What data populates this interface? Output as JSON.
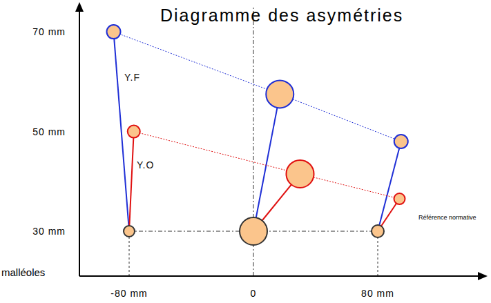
{
  "chart_data": {
    "type": "scatter",
    "title": "Diagramme des asymétries",
    "ylabel": "malléoles",
    "xlim": [
      -112,
      148
    ],
    "xticks": [
      {
        "value": -80,
        "label": "-80 mm"
      },
      0,
      {
        "value": 80,
        "label": "80 mm"
      }
    ],
    "ylim": [
      21,
      75
    ],
    "yticks": [
      {
        "value": 30,
        "label": "30 mm"
      },
      {
        "value": 50,
        "label": "50 mm"
      },
      {
        "value": 70,
        "label": "70 mm"
      }
    ],
    "grid": false,
    "series": [
      {
        "name": "Référence normative",
        "color": "#333333",
        "x": [
          -80,
          0,
          80
        ],
        "values": [
          30,
          30,
          30
        ],
        "size": [
          8,
          20,
          9
        ]
      },
      {
        "name": "Y.F",
        "color": "#1f2fd6",
        "x": [
          -90,
          17,
          95
        ],
        "values": [
          70,
          57.5,
          48
        ],
        "size": [
          10,
          20,
          10
        ]
      },
      {
        "name": "Y.O",
        "color": "#e01010",
        "x": [
          -77,
          30,
          94
        ],
        "values": [
          50,
          41.5,
          36.5
        ],
        "size": [
          9,
          20,
          8
        ]
      }
    ]
  }
}
